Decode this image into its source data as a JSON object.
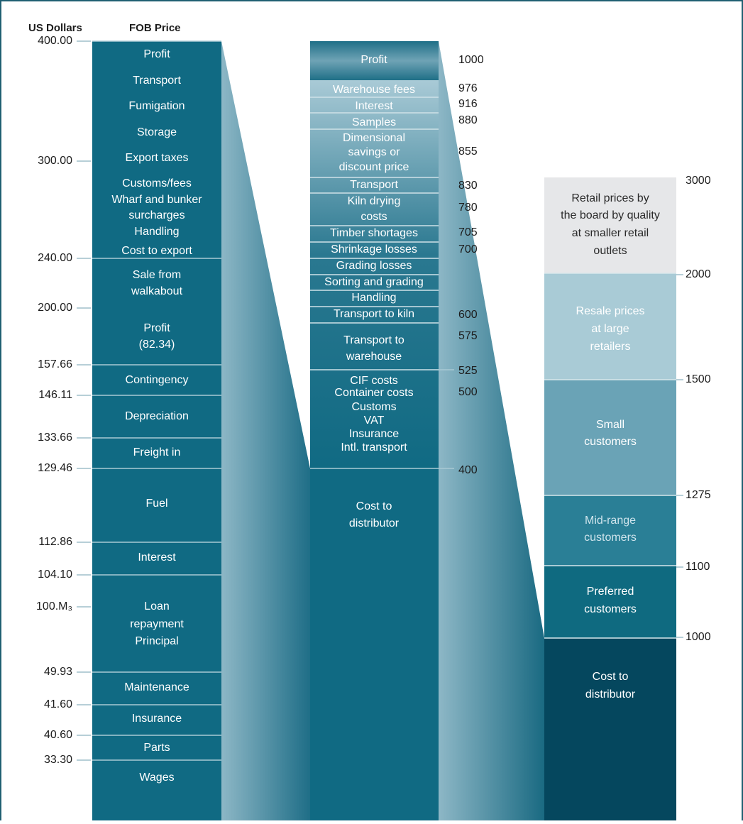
{
  "header": {
    "currency": "US Dollars",
    "price": "FOB Price"
  },
  "fob_column": {
    "ticks": [
      "400.00",
      "300.00",
      "240.00",
      "200.00",
      "157.66",
      "146.11",
      "133.66",
      "129.46",
      "112.86",
      "104.10",
      "100.M₃",
      "49.93",
      "41.60",
      "40.60",
      "33.30"
    ],
    "segments": [
      {
        "lines": [
          "Profit"
        ]
      },
      {
        "lines": [
          "Transport"
        ]
      },
      {
        "lines": [
          "Fumigation"
        ]
      },
      {
        "lines": [
          "Storage"
        ]
      },
      {
        "lines": [
          "Export taxes"
        ]
      },
      {
        "lines": [
          "Customs/fees"
        ]
      },
      {
        "lines": [
          "Wharf and bunker",
          "surcharges"
        ]
      },
      {
        "lines": [
          "Handling"
        ]
      },
      {
        "lines": [
          "Cost to export"
        ]
      },
      {
        "lines": [
          "Sale from",
          "walkabout"
        ]
      },
      {
        "lines": [
          "Profit",
          "(82.34)"
        ]
      },
      {
        "lines": [
          "Contingency"
        ]
      },
      {
        "lines": [
          "Depreciation"
        ]
      },
      {
        "lines": [
          "Freight in"
        ]
      },
      {
        "lines": [
          "Fuel"
        ]
      },
      {
        "lines": [
          "Interest"
        ]
      },
      {
        "lines": [
          "Loan",
          "repayment",
          "Principal"
        ]
      },
      {
        "lines": [
          "Maintenance"
        ]
      },
      {
        "lines": [
          "Insurance"
        ]
      },
      {
        "lines": [
          "Parts"
        ]
      },
      {
        "lines": [
          "Wages"
        ]
      }
    ]
  },
  "distributor_column": {
    "segments": [
      {
        "lines": [
          "Profit"
        ]
      },
      {
        "lines": [
          "Warehouse fees"
        ]
      },
      {
        "lines": [
          "Interest"
        ]
      },
      {
        "lines": [
          "Samples"
        ]
      },
      {
        "lines": [
          "Dimensional",
          "savings or",
          "discount price"
        ]
      },
      {
        "lines": [
          "Transport"
        ]
      },
      {
        "lines": [
          "Kiln drying",
          "costs"
        ]
      },
      {
        "lines": [
          "Timber shortages"
        ]
      },
      {
        "lines": [
          "Shrinkage losses"
        ]
      },
      {
        "lines": [
          "Grading losses"
        ]
      },
      {
        "lines": [
          "Sorting and grading"
        ]
      },
      {
        "lines": [
          "Handling"
        ]
      },
      {
        "lines": [
          "Transport to kiln"
        ]
      },
      {
        "lines": [
          "Transport to",
          "warehouse"
        ]
      },
      {
        "lines": [
          "CIF costs",
          "Container costs",
          "Customs",
          "VAT",
          "Insurance",
          "Intl. transport"
        ]
      },
      {
        "lines": [
          "Cost to",
          "distributor"
        ]
      }
    ],
    "values": [
      1000,
      976,
      916,
      880,
      855,
      830,
      780,
      705,
      700,
      600,
      575,
      525,
      500,
      400
    ]
  },
  "retail_column": {
    "segments": [
      {
        "lines": [
          "Retail prices by",
          "the board by quality",
          "at smaller retail",
          "outlets"
        ]
      },
      {
        "lines": [
          "Resale prices",
          "at large",
          "retailers"
        ]
      },
      {
        "lines": [
          "Small",
          "customers"
        ]
      },
      {
        "lines": [
          "Mid-range",
          "customers"
        ]
      },
      {
        "lines": [
          "Preferred",
          "customers"
        ]
      },
      {
        "lines": [
          "Cost to",
          "distributor"
        ]
      }
    ],
    "values": [
      3000,
      2000,
      1500,
      1275,
      1100,
      1000
    ]
  }
}
